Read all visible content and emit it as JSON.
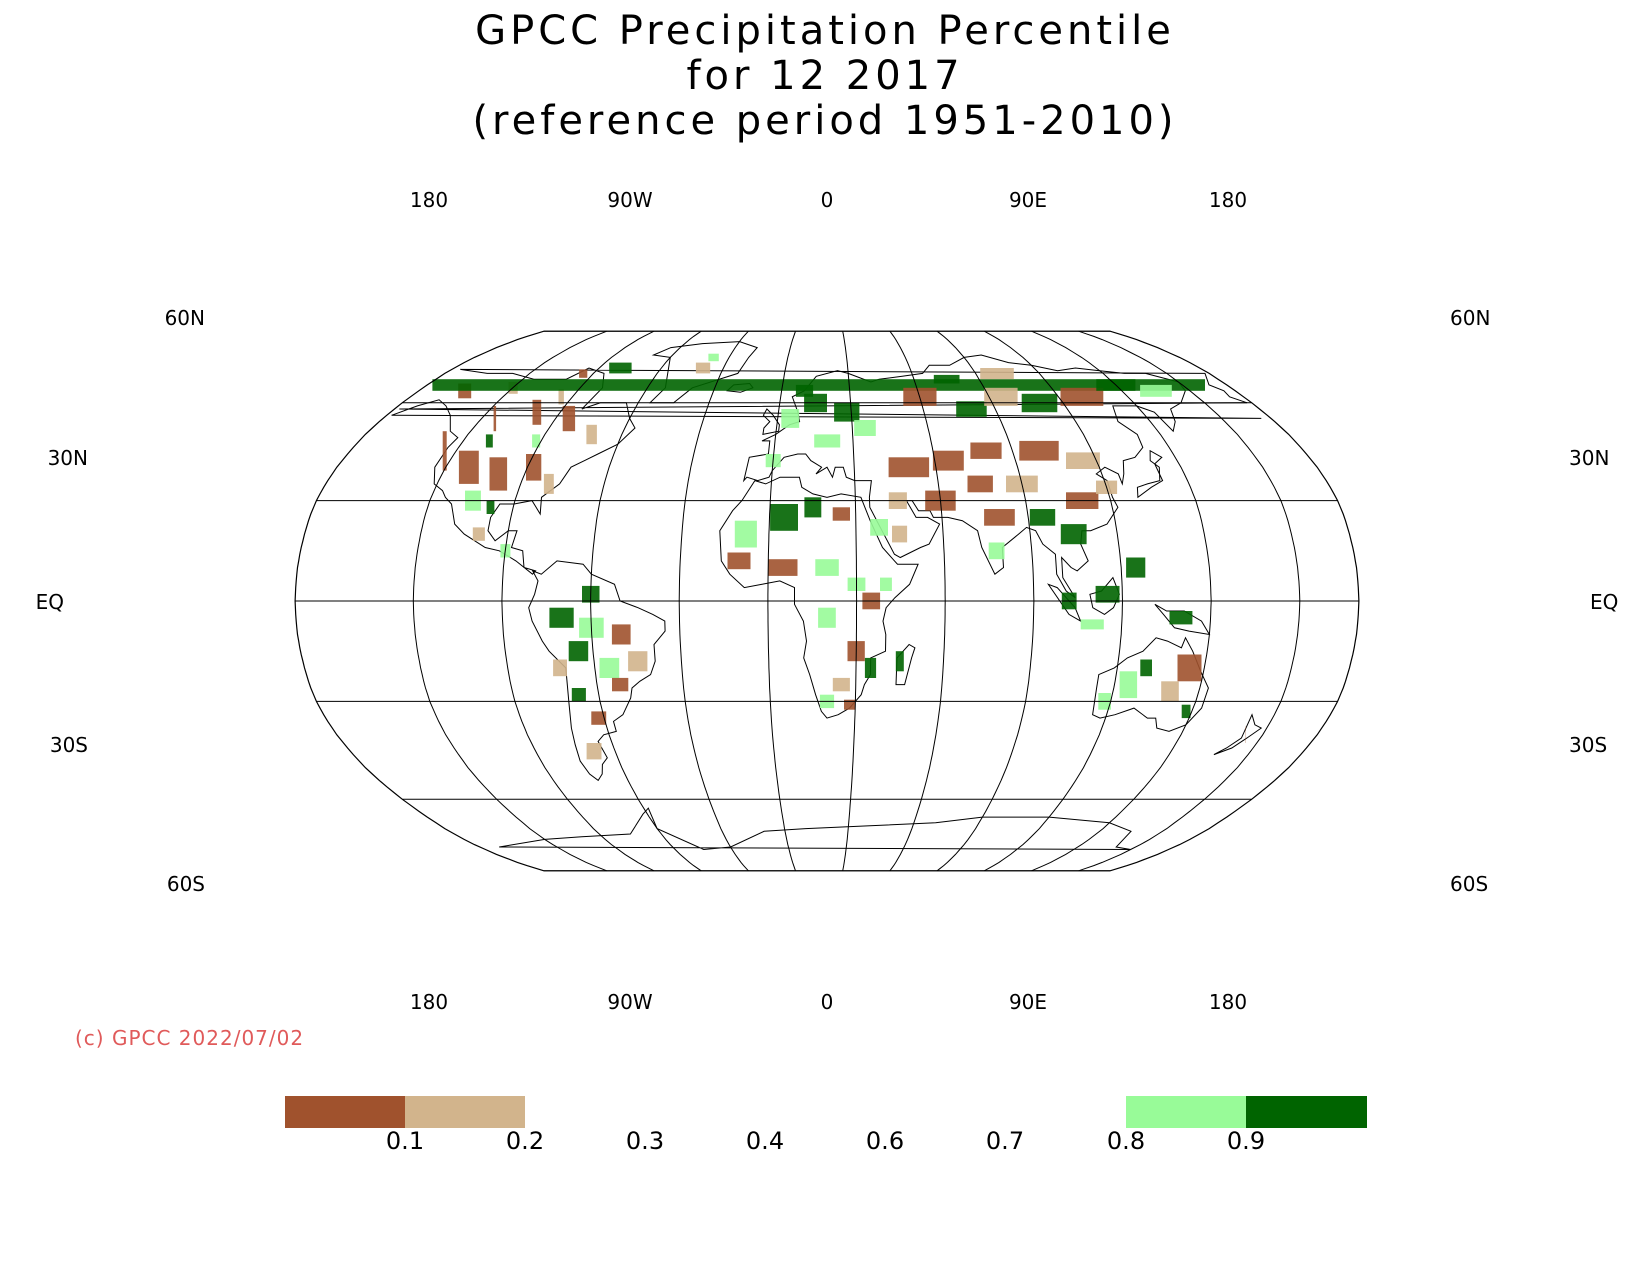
{
  "title": {
    "line1": "GPCC Precipitation Percentile",
    "line2": "for 12 2017",
    "line3": "(reference period 1951-2010)"
  },
  "map": {
    "projection": "Robinson",
    "lon_labels": [
      "180",
      "90W",
      "0",
      "90E",
      "180"
    ],
    "lat_labels": [
      "60N",
      "30N",
      "EQ",
      "30S",
      "60S"
    ],
    "regions": [
      {
        "name": "Canada / Alaska",
        "class": "dry_below_0.1"
      },
      {
        "name": "United States",
        "class": "dry_below_0.1"
      },
      {
        "name": "Northern Europe",
        "class": "wet_above_0.9"
      },
      {
        "name": "Central Asia",
        "class": "dry_below_0.1"
      },
      {
        "name": "Siberia",
        "class": "wet_above_0.9"
      },
      {
        "name": "Southeast Asia",
        "class": "wet_above_0.9"
      },
      {
        "name": "North Africa",
        "class": "wet_above_0.9"
      },
      {
        "name": "East Africa",
        "class": "dry_below_0.1"
      },
      {
        "name": "Southern Africa",
        "class": "wet_above_0.9"
      },
      {
        "name": "Brazil",
        "class": "wet_above_0.9"
      },
      {
        "name": "Eastern Australia",
        "class": "dry_below_0.1"
      },
      {
        "name": "Western Australia",
        "class": "wet_above_0.9"
      }
    ]
  },
  "copyright": "(c) GPCC 2022/07/02",
  "legend": {
    "ticks": [
      "0.1",
      "0.2",
      "0.3",
      "0.4",
      "0.6",
      "0.7",
      "0.8",
      "0.9"
    ],
    "colors": {
      "below_0.1": "#a0522d",
      "0.1_to_0.2": "#d2b48c",
      "0.8_to_0.9": "#98fb98",
      "above_0.9": "#006400"
    }
  },
  "colors": {
    "dry_strong": "#a0522d",
    "dry_moderate": "#d2b48c",
    "wet_moderate": "#98fb98",
    "wet_strong": "#006400",
    "copyright": "#e05a5a"
  }
}
